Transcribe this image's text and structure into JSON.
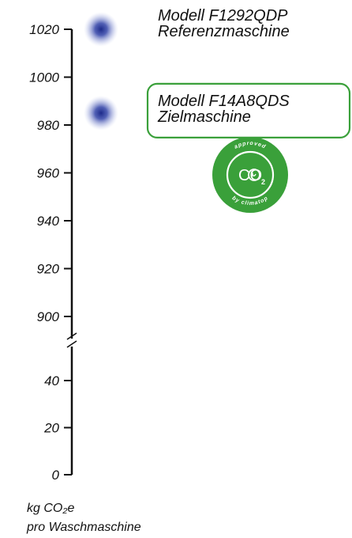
{
  "chart_data": {
    "type": "scatter",
    "axis": {
      "upper_segment": {
        "ylim": [
          900,
          1020
        ],
        "ticks": [
          1020,
          1000,
          980,
          960,
          940,
          920,
          900
        ]
      },
      "lower_segment": {
        "ylim": [
          0,
          40
        ],
        "ticks": [
          40,
          20,
          0
        ]
      },
      "broken_axis": true,
      "unit_label_line1": "kg CO₂e",
      "unit_label_line2": "pro Waschmaschine"
    },
    "points": [
      {
        "y": 1020,
        "label_line1": "Modell F1292QDP",
        "label_line2": "Referenzmaschine",
        "highlighted": false
      },
      {
        "y": 985,
        "label_line1": "Modell F14A8QDS",
        "label_line2": "Zielmaschine",
        "highlighted": true
      }
    ],
    "grid": false,
    "colors": {
      "point": "#2b3a9a",
      "highlight": "#3aa03a",
      "axis": "#111111"
    }
  },
  "badge": {
    "icon": "climatop-approved-co2-icon",
    "text_top": "approved",
    "text_bottom": "by climatop",
    "co2_main": "CO",
    "co2_sub": "2",
    "color": "#3aa03a"
  }
}
